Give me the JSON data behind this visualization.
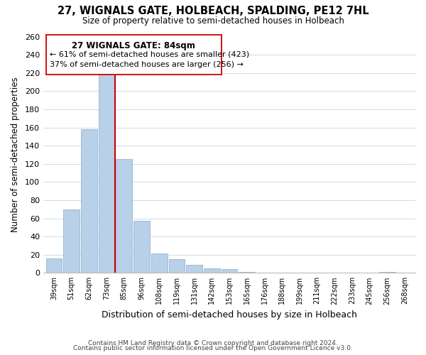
{
  "title": "27, WIGNALS GATE, HOLBEACH, SPALDING, PE12 7HL",
  "subtitle": "Size of property relative to semi-detached houses in Holbeach",
  "xlabel": "Distribution of semi-detached houses by size in Holbeach",
  "ylabel": "Number of semi-detached properties",
  "bin_labels": [
    "39sqm",
    "51sqm",
    "62sqm",
    "73sqm",
    "85sqm",
    "96sqm",
    "108sqm",
    "119sqm",
    "131sqm",
    "142sqm",
    "153sqm",
    "165sqm",
    "176sqm",
    "188sqm",
    "199sqm",
    "211sqm",
    "222sqm",
    "233sqm",
    "245sqm",
    "256sqm",
    "268sqm"
  ],
  "bar_heights": [
    16,
    70,
    158,
    219,
    125,
    57,
    21,
    15,
    9,
    5,
    4,
    1,
    0,
    0,
    0,
    0,
    0,
    0,
    0,
    1,
    0
  ],
  "marker_bin_index": 3,
  "bar_color": "#b8d0e8",
  "bar_edge_color": "#8aaac8",
  "marker_line_color": "#cc0000",
  "annotation_title": "27 WIGNALS GATE: 84sqm",
  "annotation_line1": "← 61% of semi-detached houses are smaller (423)",
  "annotation_line2": "37% of semi-detached houses are larger (256) →",
  "annotation_box_facecolor": "#ffffff",
  "annotation_box_edgecolor": "#cc0000",
  "ylim": [
    0,
    260
  ],
  "yticks": [
    0,
    20,
    40,
    60,
    80,
    100,
    120,
    140,
    160,
    180,
    200,
    220,
    240,
    260
  ],
  "footer_line1": "Contains HM Land Registry data © Crown copyright and database right 2024.",
  "footer_line2": "Contains public sector information licensed under the Open Government Licence v3.0.",
  "background_color": "#ffffff",
  "grid_color": "#c8d4e4"
}
